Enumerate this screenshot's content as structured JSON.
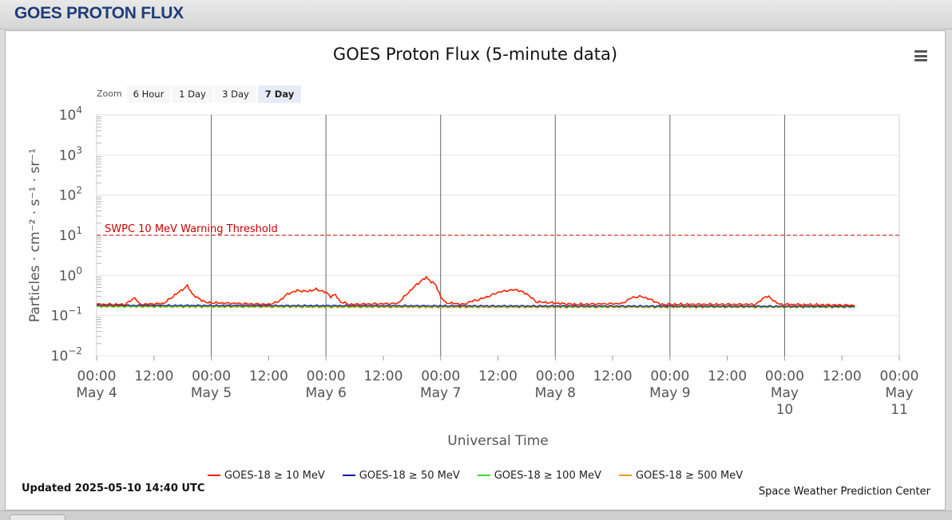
{
  "page": {
    "header_title": "GOES PROTON FLUX",
    "updated": "Updated 2025-05-10 14:40 UTC",
    "credit": "Space Weather Prediction Center"
  },
  "zoom": {
    "label": "Zoom",
    "buttons": [
      {
        "label": "6 Hour",
        "active": false
      },
      {
        "label": "1 Day",
        "active": false
      },
      {
        "label": "3 Day",
        "active": false
      },
      {
        "label": "7 Day",
        "active": true
      }
    ]
  },
  "chart_data": {
    "type": "line",
    "title": "GOES Proton Flux (5-minute data)",
    "xlabel": "Universal Time",
    "ylabel": "Particles · cm⁻² · s⁻¹ · sr⁻¹",
    "y_scale": "log",
    "ylim": [
      0.01,
      10000
    ],
    "xlim": [
      "2025-05-04 00:00",
      "2025-05-11 00:00"
    ],
    "y_ticks": [
      {
        "value": 0.01,
        "base": "10",
        "exp": "−2"
      },
      {
        "value": 0.1,
        "base": "10",
        "exp": "−1"
      },
      {
        "value": 1,
        "base": "10",
        "exp": "0"
      },
      {
        "value": 10,
        "base": "10",
        "exp": "1"
      },
      {
        "value": 100,
        "base": "10",
        "exp": "2"
      },
      {
        "value": 1000,
        "base": "10",
        "exp": "3"
      },
      {
        "value": 10000,
        "base": "10",
        "exp": "4"
      }
    ],
    "x_ticks": [
      {
        "t": "2025-05-04 00:00",
        "lines": [
          "00:00",
          "May 4"
        ]
      },
      {
        "t": "2025-05-04 12:00",
        "lines": [
          "12:00"
        ]
      },
      {
        "t": "2025-05-05 00:00",
        "lines": [
          "00:00",
          "May 5"
        ]
      },
      {
        "t": "2025-05-05 12:00",
        "lines": [
          "12:00"
        ]
      },
      {
        "t": "2025-05-06 00:00",
        "lines": [
          "00:00",
          "May 6"
        ]
      },
      {
        "t": "2025-05-06 12:00",
        "lines": [
          "12:00"
        ]
      },
      {
        "t": "2025-05-07 00:00",
        "lines": [
          "00:00",
          "May 7"
        ]
      },
      {
        "t": "2025-05-07 12:00",
        "lines": [
          "12:00"
        ]
      },
      {
        "t": "2025-05-08 00:00",
        "lines": [
          "00:00",
          "May 8"
        ]
      },
      {
        "t": "2025-05-08 12:00",
        "lines": [
          "12:00"
        ]
      },
      {
        "t": "2025-05-09 00:00",
        "lines": [
          "00:00",
          "May 9"
        ]
      },
      {
        "t": "2025-05-09 12:00",
        "lines": [
          "12:00"
        ]
      },
      {
        "t": "2025-05-10 00:00",
        "lines": [
          "00:00",
          "May",
          "10"
        ]
      },
      {
        "t": "2025-05-10 12:00",
        "lines": [
          "12:00"
        ]
      },
      {
        "t": "2025-05-11 00:00",
        "lines": [
          "00:00",
          "May",
          "11"
        ]
      }
    ],
    "day_lines": [
      "2025-05-05 00:00",
      "2025-05-06 00:00",
      "2025-05-07 00:00",
      "2025-05-08 00:00",
      "2025-05-09 00:00",
      "2025-05-10 00:00"
    ],
    "threshold": {
      "value": 10,
      "label": "SWPC 10 MeV Warning Threshold",
      "color": "#cc0000"
    },
    "grid": true,
    "legend_position": "bottom",
    "series": [
      {
        "name": "GOES-18 ≥ 10 MeV",
        "color": "#ff2200",
        "points": [
          [
            "2025-05-04 00:00",
            0.19
          ],
          [
            "2025-05-04 06:00",
            0.19
          ],
          [
            "2025-05-04 08:00",
            0.28
          ],
          [
            "2025-05-04 09:00",
            0.19
          ],
          [
            "2025-05-04 14:00",
            0.2
          ],
          [
            "2025-05-04 16:00",
            0.3
          ],
          [
            "2025-05-04 18:00",
            0.45
          ],
          [
            "2025-05-04 19:00",
            0.55
          ],
          [
            "2025-05-04 20:00",
            0.35
          ],
          [
            "2025-05-04 21:00",
            0.28
          ],
          [
            "2025-05-04 23:00",
            0.21
          ],
          [
            "2025-05-05 12:00",
            0.19
          ],
          [
            "2025-05-05 14:00",
            0.22
          ],
          [
            "2025-05-05 16:00",
            0.35
          ],
          [
            "2025-05-05 18:00",
            0.42
          ],
          [
            "2025-05-05 20:00",
            0.4
          ],
          [
            "2025-05-05 22:00",
            0.45
          ],
          [
            "2025-05-06 00:00",
            0.38
          ],
          [
            "2025-05-06 01:00",
            0.3
          ],
          [
            "2025-05-06 02:00",
            0.33
          ],
          [
            "2025-05-06 03:00",
            0.22
          ],
          [
            "2025-05-06 05:00",
            0.19
          ],
          [
            "2025-05-06 15:00",
            0.2
          ],
          [
            "2025-05-06 17:00",
            0.35
          ],
          [
            "2025-05-06 19:00",
            0.6
          ],
          [
            "2025-05-06 21:00",
            0.9
          ],
          [
            "2025-05-06 22:00",
            0.7
          ],
          [
            "2025-05-06 23:00",
            0.58
          ],
          [
            "2025-05-07 00:00",
            0.3
          ],
          [
            "2025-05-07 01:00",
            0.21
          ],
          [
            "2025-05-07 05:00",
            0.19
          ],
          [
            "2025-05-07 06:00",
            0.22
          ],
          [
            "2025-05-07 08:00",
            0.25
          ],
          [
            "2025-05-07 10:00",
            0.3
          ],
          [
            "2025-05-07 12:00",
            0.38
          ],
          [
            "2025-05-07 14:00",
            0.42
          ],
          [
            "2025-05-07 16:00",
            0.44
          ],
          [
            "2025-05-07 18:00",
            0.35
          ],
          [
            "2025-05-07 20:00",
            0.22
          ],
          [
            "2025-05-08 04:00",
            0.19
          ],
          [
            "2025-05-08 14:00",
            0.2
          ],
          [
            "2025-05-08 16:00",
            0.28
          ],
          [
            "2025-05-08 18:00",
            0.3
          ],
          [
            "2025-05-08 20:00",
            0.25
          ],
          [
            "2025-05-08 21:00",
            0.22
          ],
          [
            "2025-05-08 22:00",
            0.19
          ],
          [
            "2025-05-09 18:00",
            0.19
          ],
          [
            "2025-05-09 19:00",
            0.24
          ],
          [
            "2025-05-09 20:00",
            0.3
          ],
          [
            "2025-05-09 21:00",
            0.28
          ],
          [
            "2025-05-09 22:00",
            0.22
          ],
          [
            "2025-05-09 23:00",
            0.19
          ],
          [
            "2025-05-10 14:40",
            0.18
          ]
        ]
      },
      {
        "name": "GOES-18 ≥ 50 MeV",
        "color": "#1a1aa6",
        "points": [
          [
            "2025-05-04 00:00",
            0.18
          ],
          [
            "2025-05-07 00:00",
            0.175
          ],
          [
            "2025-05-10 14:40",
            0.17
          ]
        ]
      },
      {
        "name": "GOES-18 ≥ 100 MeV",
        "color": "#33dd33",
        "points": [
          [
            "2025-05-04 00:00",
            0.17
          ],
          [
            "2025-05-07 00:00",
            0.17
          ],
          [
            "2025-05-10 14:40",
            0.165
          ]
        ]
      },
      {
        "name": "GOES-18 ≥ 500 MeV",
        "color": "#e69e1a",
        "points": [
          [
            "2025-05-04 00:00",
            0.165
          ],
          [
            "2025-05-07 00:00",
            0.16
          ],
          [
            "2025-05-10 14:40",
            0.16
          ]
        ]
      }
    ]
  }
}
